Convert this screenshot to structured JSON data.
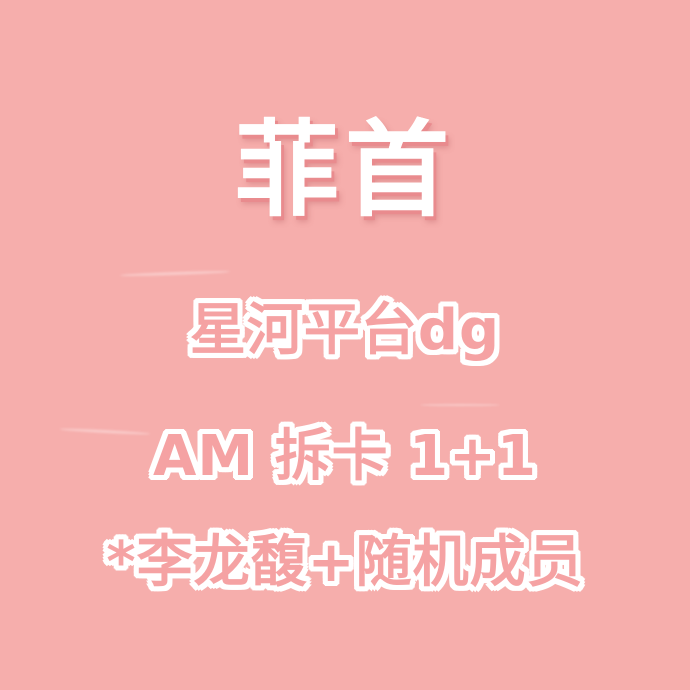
{
  "colors": {
    "background": "#f6aeac",
    "title_fill": "#ffffff",
    "title_shadow": "#e98b8e",
    "text_fill": "#f5a2a3",
    "text_outline": "#ffffff"
  },
  "title": "菲首",
  "lines": [
    "星河平台dg",
    "AM  拆卡  1+1",
    "*李龙馥+随机成员"
  ]
}
